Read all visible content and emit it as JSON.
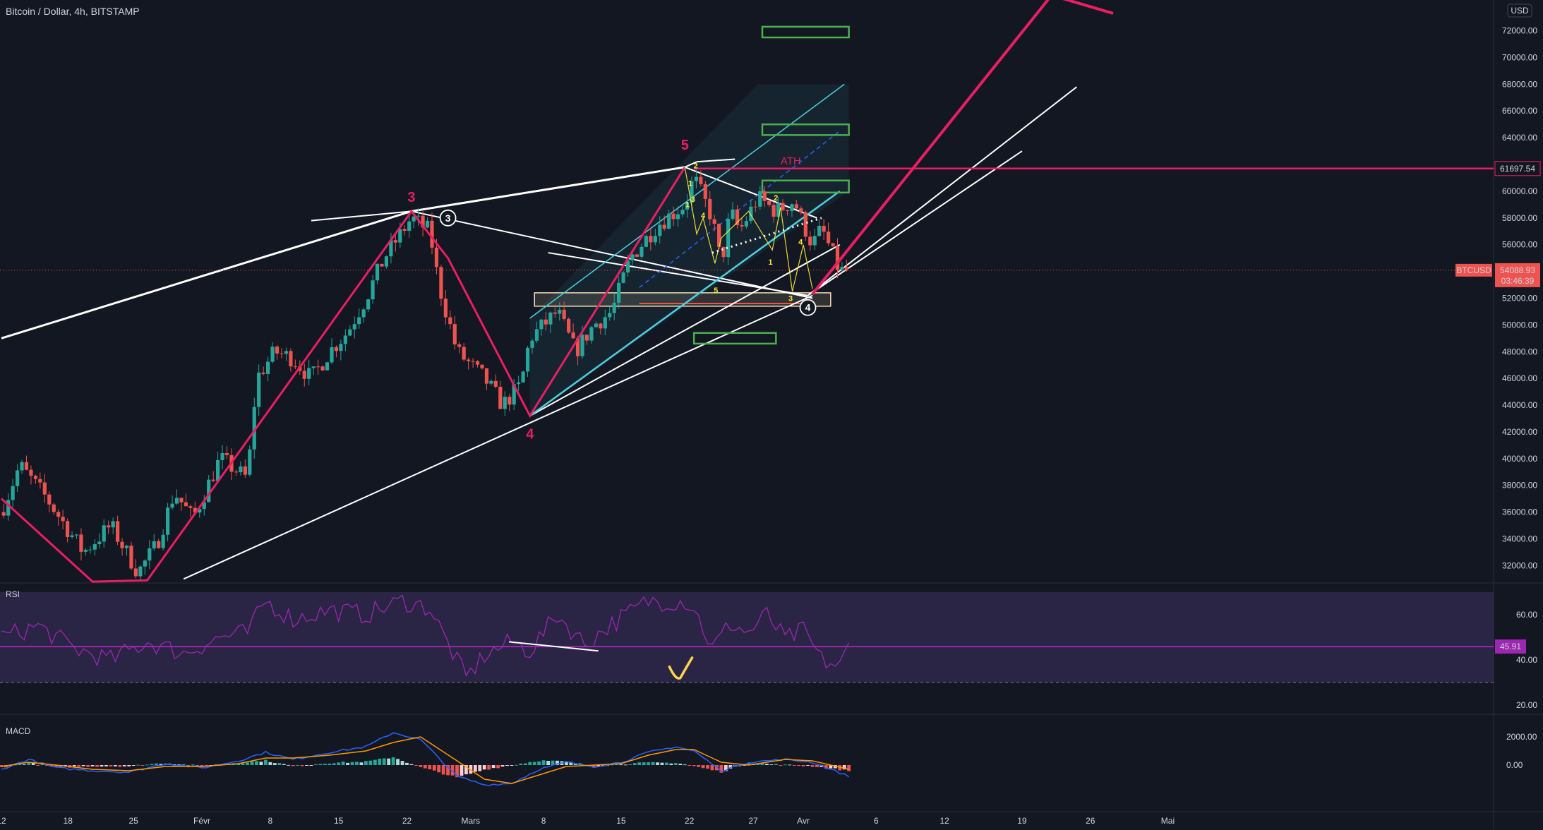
{
  "header": {
    "symbol": "Bitcoin / Dollar",
    "interval": "4h",
    "exchange": "BITSTAMP",
    "sep": ", "
  },
  "currency_button": "USD",
  "colors": {
    "background": "#131722",
    "up": "#26a69a",
    "down": "#ef5350",
    "wave": "#e91e63",
    "trend": "#ffffff",
    "channel": "#4dd0e1",
    "target": "#4caf50",
    "rsi": "#9c27b0",
    "macd": "#2962ff",
    "signal": "#ff9800",
    "count": "#ffeb3b"
  },
  "chart_data": [
    {
      "type": "candlestick",
      "title": "Bitcoin / Dollar, 4h, BITSTAMP",
      "ylim": [
        30700,
        74300
      ],
      "y_ticks": [
        "32000.00",
        "34000.00",
        "36000.00",
        "38000.00",
        "40000.00",
        "42000.00",
        "44000.00",
        "46000.00",
        "48000.00",
        "50000.00",
        "52000.00",
        "54000.00",
        "56000.00",
        "58000.00",
        "60000.00",
        "62000.00",
        "64000.00",
        "66000.00",
        "68000.00",
        "70000.00",
        "72000.00"
      ],
      "x_ticks": [
        "12",
        "18",
        "25",
        "Févr",
        "8",
        "15",
        "22",
        "Mars",
        "8",
        "15",
        "22",
        "27",
        "Avr",
        "6",
        "12",
        "19",
        "26",
        "Mai"
      ],
      "last_price": {
        "label": "BTCUSD",
        "value": "54088.93",
        "countdown": "03:46:39"
      },
      "ath": {
        "label": "ATH",
        "value": "61697.54"
      },
      "path_anchors": [
        {
          "d": 0,
          "p": 36000
        },
        {
          "d": 2,
          "p": 39500
        },
        {
          "d": 5,
          "p": 37000
        },
        {
          "d": 9,
          "p": 33000
        },
        {
          "d": 12,
          "p": 35000
        },
        {
          "d": 15,
          "p": 31500
        },
        {
          "d": 17,
          "p": 33500
        },
        {
          "d": 19,
          "p": 37500
        },
        {
          "d": 21,
          "p": 35500
        },
        {
          "d": 24,
          "p": 40000
        },
        {
          "d": 27,
          "p": 38500
        },
        {
          "d": 28,
          "p": 46000
        },
        {
          "d": 30,
          "p": 48000
        },
        {
          "d": 32,
          "p": 47500
        },
        {
          "d": 34,
          "p": 46000
        },
        {
          "d": 36,
          "p": 48000
        },
        {
          "d": 38,
          "p": 49500
        },
        {
          "d": 40,
          "p": 52000
        },
        {
          "d": 42,
          "p": 55000
        },
        {
          "d": 45,
          "p": 58000
        },
        {
          "d": 47,
          "p": 57000
        },
        {
          "d": 48,
          "p": 53000
        },
        {
          "d": 50,
          "p": 48000
        },
        {
          "d": 53,
          "p": 46000
        },
        {
          "d": 55,
          "p": 44000
        },
        {
          "d": 57,
          "p": 45500
        },
        {
          "d": 58,
          "p": 49000
        },
        {
          "d": 61,
          "p": 51000
        },
        {
          "d": 63,
          "p": 48000
        },
        {
          "d": 65,
          "p": 50000
        },
        {
          "d": 67,
          "p": 51000
        },
        {
          "d": 69,
          "p": 55000
        },
        {
          "d": 72,
          "p": 57500
        },
        {
          "d": 75,
          "p": 59000
        },
        {
          "d": 76,
          "p": 61000
        },
        {
          "d": 78,
          "p": 58000
        },
        {
          "d": 79,
          "p": 54500
        },
        {
          "d": 80,
          "p": 58500
        },
        {
          "d": 81,
          "p": 57000
        },
        {
          "d": 83,
          "p": 59500
        },
        {
          "d": 85,
          "p": 58500
        },
        {
          "d": 87,
          "p": 59300
        },
        {
          "d": 88,
          "p": 57500
        },
        {
          "d": 89,
          "p": 56000
        },
        {
          "d": 90,
          "p": 57200
        },
        {
          "d": 92,
          "p": 54000
        },
        {
          "d": 93,
          "p": 54088.93
        }
      ],
      "wave_labels": [
        {
          "text": "3",
          "date": 45,
          "price": 59200
        },
        {
          "text": "4",
          "date": 58,
          "price": 41500
        },
        {
          "text": "5",
          "date": 75,
          "price": 63100
        }
      ],
      "circle_labels": [
        {
          "text": "3",
          "date": 49,
          "price": 58000
        },
        {
          "text": "4",
          "date": 88.5,
          "price": 51300
        }
      ],
      "sub_counts": [
        {
          "text": "1",
          "date": 75.6,
          "price": 60400
        },
        {
          "text": "2",
          "date": 76.2,
          "price": 61700
        },
        {
          "text": "3",
          "date": 75.9,
          "price": 59200
        },
        {
          "text": "4",
          "date": 77.0,
          "price": 58000
        },
        {
          "text": "1",
          "date": 75.3,
          "price": 58800
        },
        {
          "text": "5",
          "date": 78.4,
          "price": 52400
        },
        {
          "text": "2",
          "date": 85.0,
          "price": 59300
        },
        {
          "text": "4",
          "date": 87.7,
          "price": 56000
        },
        {
          "text": "1",
          "date": 84.4,
          "price": 54500
        },
        {
          "text": "3",
          "date": 86.6,
          "price": 51800
        }
      ],
      "target_boxes": [
        {
          "d0": 83.5,
          "d1": 93,
          "p0": 72300,
          "p1": 71500
        },
        {
          "d0": 83.5,
          "d1": 93,
          "p0": 65000,
          "p1": 64200
        },
        {
          "d0": 83.5,
          "d1": 93,
          "p0": 60800,
          "p1": 59900
        },
        {
          "d0": 76,
          "d1": 85,
          "p0": 49400,
          "p1": 48600
        }
      ],
      "zone_box": {
        "d0": 58.5,
        "d1": 91,
        "p0": 52400,
        "p1": 51400
      }
    },
    {
      "type": "line",
      "title": "RSI",
      "ylim": [
        16,
        74
      ],
      "y_ticks": [
        "20.00",
        "40.00",
        "60.00"
      ],
      "last_value": "45.91",
      "band": [
        30,
        70
      ],
      "anchors": [
        {
          "d": 0,
          "v": 50
        },
        {
          "d": 4,
          "v": 55
        },
        {
          "d": 8,
          "v": 45
        },
        {
          "d": 12,
          "v": 40
        },
        {
          "d": 16,
          "v": 48
        },
        {
          "d": 20,
          "v": 43
        },
        {
          "d": 24,
          "v": 50
        },
        {
          "d": 27,
          "v": 52
        },
        {
          "d": 29,
          "v": 66
        },
        {
          "d": 32,
          "v": 58
        },
        {
          "d": 36,
          "v": 62
        },
        {
          "d": 40,
          "v": 60
        },
        {
          "d": 44,
          "v": 66
        },
        {
          "d": 47,
          "v": 63
        },
        {
          "d": 49,
          "v": 47
        },
        {
          "d": 51,
          "v": 32
        },
        {
          "d": 53,
          "v": 42
        },
        {
          "d": 56,
          "v": 48
        },
        {
          "d": 58,
          "v": 44
        },
        {
          "d": 61,
          "v": 60
        },
        {
          "d": 64,
          "v": 47
        },
        {
          "d": 67,
          "v": 56
        },
        {
          "d": 71,
          "v": 66
        },
        {
          "d": 75,
          "v": 66
        },
        {
          "d": 76,
          "v": 63
        },
        {
          "d": 78,
          "v": 45
        },
        {
          "d": 80,
          "v": 56
        },
        {
          "d": 82,
          "v": 52
        },
        {
          "d": 84,
          "v": 60
        },
        {
          "d": 86,
          "v": 49
        },
        {
          "d": 88,
          "v": 53
        },
        {
          "d": 90,
          "v": 40
        },
        {
          "d": 92,
          "v": 37
        },
        {
          "d": 93,
          "v": 45.91
        }
      ]
    },
    {
      "type": "histogram",
      "title": "MACD",
      "ylim": [
        -3300,
        3600
      ],
      "y_ticks": [
        "0.00",
        "2000.00"
      ],
      "anchors": [
        {
          "d": 0,
          "m": -300,
          "s": -100
        },
        {
          "d": 3,
          "m": 400,
          "s": 200
        },
        {
          "d": 6,
          "m": -200,
          "s": 0
        },
        {
          "d": 10,
          "m": -400,
          "s": -300
        },
        {
          "d": 14,
          "m": -500,
          "s": -400
        },
        {
          "d": 18,
          "m": 100,
          "s": -100
        },
        {
          "d": 22,
          "m": -200,
          "s": -100
        },
        {
          "d": 26,
          "m": 300,
          "s": 100
        },
        {
          "d": 29,
          "m": 900,
          "s": 500
        },
        {
          "d": 32,
          "m": 400,
          "s": 500
        },
        {
          "d": 36,
          "m": 900,
          "s": 700
        },
        {
          "d": 40,
          "m": 1300,
          "s": 1000
        },
        {
          "d": 43,
          "m": 2300,
          "s": 1600
        },
        {
          "d": 46,
          "m": 1800,
          "s": 2000
        },
        {
          "d": 50,
          "m": -800,
          "s": 300
        },
        {
          "d": 53,
          "m": -1400,
          "s": -1000
        },
        {
          "d": 56,
          "m": -1300,
          "s": -1300
        },
        {
          "d": 59,
          "m": -300,
          "s": -700
        },
        {
          "d": 62,
          "m": 200,
          "s": -100
        },
        {
          "d": 65,
          "m": -100,
          "s": 0
        },
        {
          "d": 68,
          "m": 200,
          "s": 100
        },
        {
          "d": 71,
          "m": 900,
          "s": 700
        },
        {
          "d": 74,
          "m": 1300,
          "s": 1100
        },
        {
          "d": 76,
          "m": 1000,
          "s": 1100
        },
        {
          "d": 79,
          "m": -400,
          "s": 200
        },
        {
          "d": 82,
          "m": 200,
          "s": 0
        },
        {
          "d": 86,
          "m": 400,
          "s": 400
        },
        {
          "d": 89,
          "m": 200,
          "s": 300
        },
        {
          "d": 93,
          "m": -800,
          "s": -300
        }
      ]
    }
  ]
}
